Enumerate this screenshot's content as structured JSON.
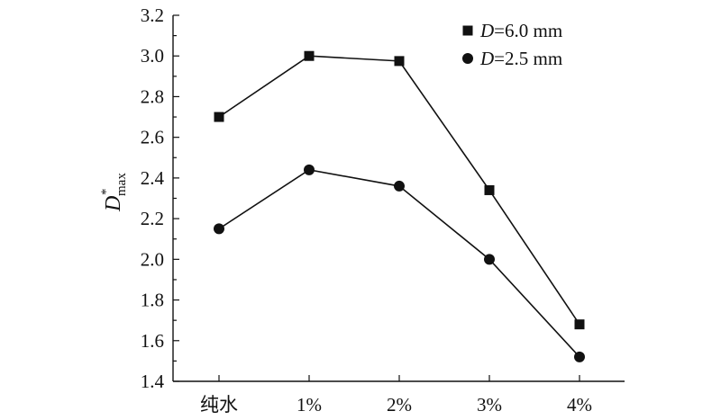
{
  "chart_data": {
    "type": "line",
    "categories": [
      "纯水",
      "1%",
      "2%",
      "3%",
      "4%"
    ],
    "series": [
      {
        "name": "D=6.0 mm",
        "name_italic": "D",
        "name_rest": "=6.0 mm",
        "marker": "square",
        "values": [
          2.7,
          3.0,
          2.975,
          2.34,
          1.68
        ]
      },
      {
        "name": "D=2.5 mm",
        "name_italic": "D",
        "name_rest": "=2.5 mm",
        "marker": "circle",
        "values": [
          2.15,
          2.44,
          2.36,
          2.0,
          1.52
        ]
      }
    ],
    "ylim": [
      1.4,
      3.2
    ],
    "yticks": [
      "1.4",
      "1.6",
      "1.8",
      "2.0",
      "2.2",
      "2.4",
      "2.6",
      "2.8",
      "3.0",
      "3.2"
    ],
    "ylabel": {
      "main": "D",
      "sup": "*",
      "sub": "max"
    },
    "xlabel": "",
    "title": "",
    "legend": "top-right",
    "grid": false,
    "color": "#111111"
  }
}
